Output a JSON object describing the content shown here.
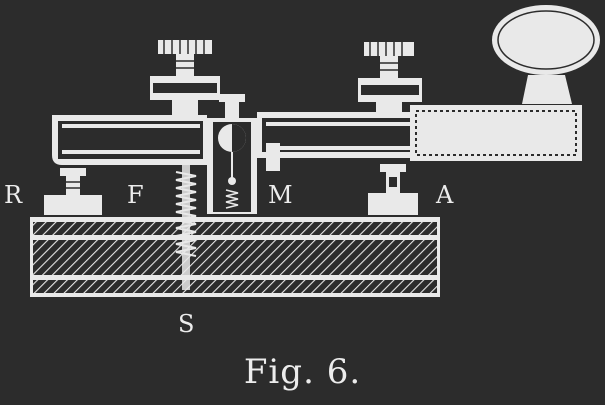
{
  "figure": {
    "labels": {
      "r": "R",
      "f": "F",
      "m": "M",
      "a": "A",
      "s": "S"
    },
    "caption": "Fig. 6."
  }
}
